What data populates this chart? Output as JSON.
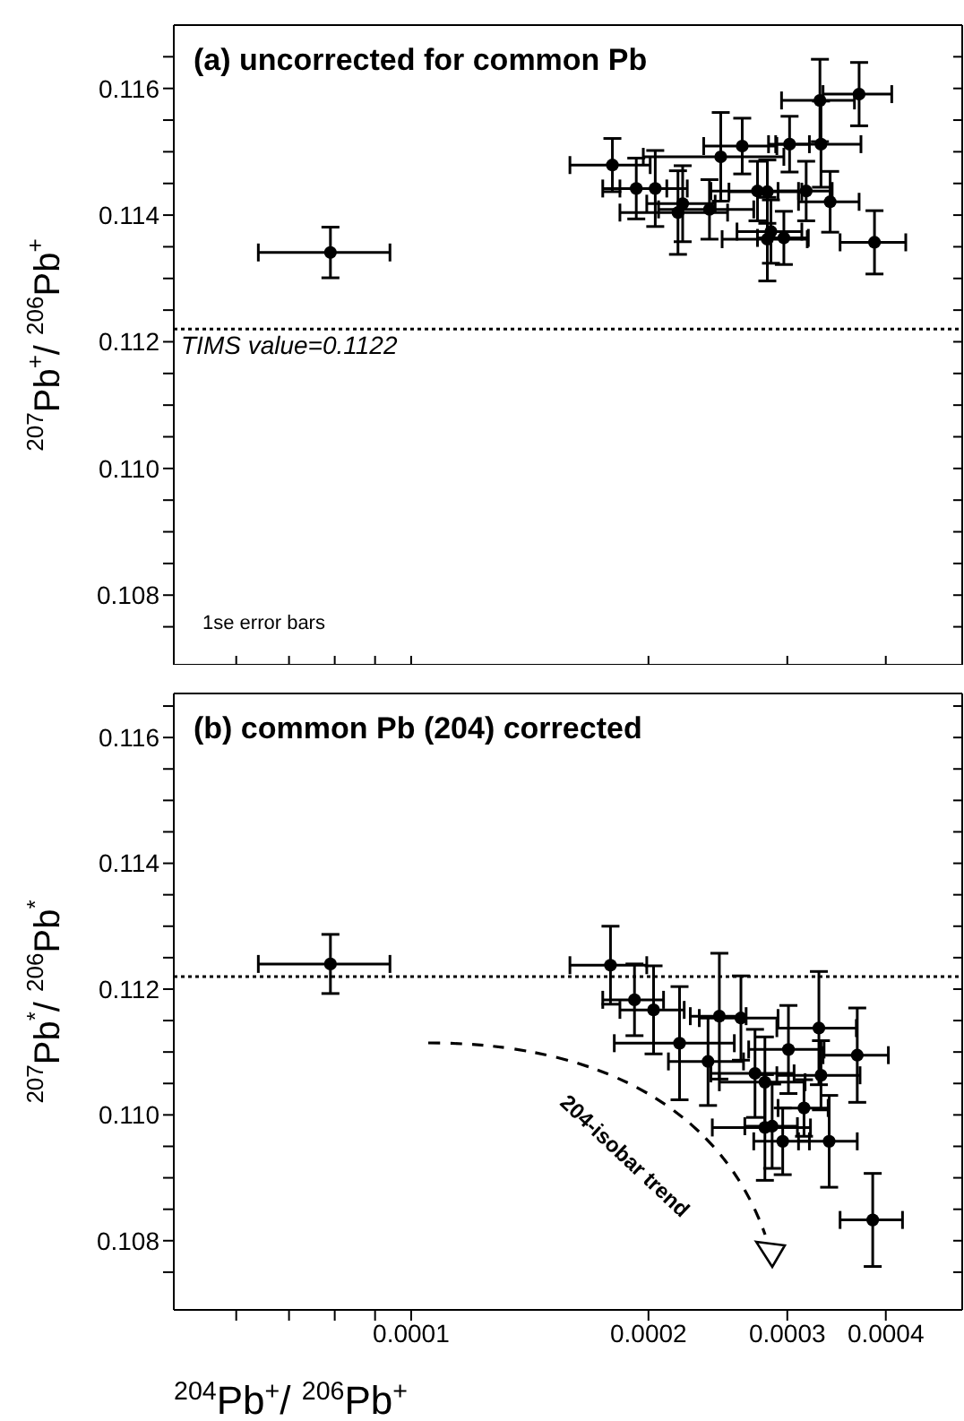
{
  "chart_data": [
    {
      "type": "scatter",
      "title": "(a) uncorrected for common Pb",
      "ylabel": "$^{207}$Pb$^{+}$/ $^{206}$Pb$^{+}$",
      "color": "#000000",
      "marker": "circle",
      "log": "x",
      "tick_labels": "y",
      "x": [
        7.9e-05,
        0.00018,
        0.000193,
        0.000204,
        0.000221,
        0.000218,
        0.000239,
        0.000247,
        0.000263,
        0.000302,
        0.00033,
        0.00037,
        0.000331,
        0.000275,
        0.000283,
        0.000317,
        0.00034,
        0.000286,
        0.000283,
        0.000297,
        0.000387
      ],
      "values": [
        0.11341,
        0.11479,
        0.11442,
        0.11442,
        0.11418,
        0.11404,
        0.11409,
        0.11492,
        0.11509,
        0.11512,
        0.11581,
        0.11591,
        0.11512,
        0.11438,
        0.11437,
        0.11438,
        0.11421,
        0.11374,
        0.11362,
        0.11364,
        0.11357
      ],
      "xerrors": [
        1.5e-05,
        2.1e-05,
        1.8e-05,
        2e-05,
        2.2e-05,
        3.4e-05,
        3.3e-05,
        5e-05,
        2.8e-05,
        1.8e-05,
        3.5e-05,
        3.7e-05,
        4.1e-05,
        3.5e-05,
        3e-05,
        2.5e-05,
        3e-05,
        2.7e-05,
        3.5e-05,
        2.2e-05,
        3.7e-05
      ],
      "errors": [
        0.0004,
        0.00042,
        0.00048,
        0.0006,
        0.0006,
        0.00066,
        0.00047,
        0.0007,
        0.00044,
        0.00044,
        0.00065,
        0.0005,
        0.00068,
        0.00047,
        0.0005,
        0.00047,
        0.00048,
        0.0005,
        0.00066,
        0.00042,
        0.0005
      ],
      "xlim": [
        5e-05,
        0.0005
      ],
      "xticks": [
        {
          "value": 6e-05,
          "label": null
        },
        {
          "value": 7e-05,
          "label": null
        },
        {
          "value": 8e-05,
          "label": null
        },
        {
          "value": 9e-05,
          "label": null
        },
        {
          "value": 0.0001,
          "label": null
        },
        {
          "value": 0.0002,
          "label": null
        },
        {
          "value": 0.0003,
          "label": null
        },
        {
          "value": 0.0004,
          "label": null
        }
      ],
      "ylim": [
        0.1069,
        0.117
      ],
      "yticks": [
        {
          "value": 0.1075,
          "label": null
        },
        {
          "value": 0.108,
          "label": "0.108"
        },
        {
          "value": 0.1085,
          "label": null
        },
        {
          "value": 0.109,
          "label": null
        },
        {
          "value": 0.1095,
          "label": null
        },
        {
          "value": 0.11,
          "label": "0.110"
        },
        {
          "value": 0.1105,
          "label": null
        },
        {
          "value": 0.111,
          "label": null
        },
        {
          "value": 0.1115,
          "label": null
        },
        {
          "value": 0.112,
          "label": "0.112"
        },
        {
          "value": 0.1125,
          "label": null
        },
        {
          "value": 0.113,
          "label": null
        },
        {
          "value": 0.1135,
          "label": null
        },
        {
          "value": 0.114,
          "label": "0.114"
        },
        {
          "value": 0.1145,
          "label": null
        },
        {
          "value": 0.115,
          "label": null
        },
        {
          "value": 0.1155,
          "label": null
        },
        {
          "value": 0.116,
          "label": "0.116"
        },
        {
          "value": 0.1165,
          "label": null
        }
      ],
      "ref_lines": [
        {
          "axis": "y",
          "value": 0.1122,
          "label": "TIMS value=0.1122",
          "line_style": "dotted",
          "color": "#000000"
        }
      ],
      "annotations": [
        "1se error bars"
      ]
    },
    {
      "type": "scatter",
      "title": "(b) common Pb (204) corrected",
      "xlabel": "$^{204}$Pb$^{+}$/ $^{206}$Pb$^{+}$",
      "ylabel": "$^{207}$Pb$^{*}$/ $^{206}$Pb$^{*}$",
      "color": "#000000",
      "marker": "circle",
      "log": "x",
      "x": [
        7.9e-05,
        0.000179,
        0.000192,
        0.000203,
        0.000219,
        0.000238,
        0.000246,
        0.000262,
        0.000301,
        0.000329,
        0.000368,
        0.000273,
        0.000281,
        0.000331,
        0.000315,
        0.000281,
        0.000287,
        0.000296,
        0.000339,
        0.000385
      ],
      "values": [
        0.1124,
        0.11238,
        0.11183,
        0.11167,
        0.11114,
        0.11085,
        0.11157,
        0.11154,
        0.11104,
        0.11138,
        0.11095,
        0.11066,
        0.11052,
        0.11063,
        0.11011,
        0.1098,
        0.10982,
        0.10958,
        0.10958,
        0.10833
      ],
      "xerrors": [
        1.5e-05,
        2e-05,
        1.7e-05,
        1.9e-05,
        3.8e-05,
        2.6e-05,
        2e-05,
        3e-05,
        3.3e-05,
        3.8e-05,
        3.5e-05,
        3.3e-05,
        3.5e-05,
        4e-05,
        2.3e-05,
        4e-05,
        2.2e-05,
        2.4e-05,
        2.9e-05,
        3.5e-05
      ],
      "errors": [
        0.00047,
        0.00062,
        0.00057,
        0.0007,
        0.0009,
        0.0007,
        0.001,
        0.00067,
        0.0007,
        0.0009,
        0.00075,
        0.0007,
        0.00072,
        0.00055,
        0.00045,
        0.00084,
        0.00067,
        0.00053,
        0.00073,
        0.00074
      ],
      "xlim": [
        5e-05,
        0.0005
      ],
      "xticks": [
        {
          "value": 6e-05,
          "label": null
        },
        {
          "value": 7e-05,
          "label": null
        },
        {
          "value": 8e-05,
          "label": null
        },
        {
          "value": 9e-05,
          "label": null
        },
        {
          "value": 0.0001,
          "label": "0.0001"
        },
        {
          "value": 0.0002,
          "label": "0.0002"
        },
        {
          "value": 0.0003,
          "label": "0.0003"
        },
        {
          "value": 0.0004,
          "label": "0.0004"
        }
      ],
      "ylim": [
        0.1069,
        0.1167
      ],
      "yticks": [
        {
          "value": 0.1075,
          "label": null
        },
        {
          "value": 0.108,
          "label": "0.108"
        },
        {
          "value": 0.1085,
          "label": null
        },
        {
          "value": 0.109,
          "label": null
        },
        {
          "value": 0.1095,
          "label": null
        },
        {
          "value": 0.11,
          "label": "0.110"
        },
        {
          "value": 0.1105,
          "label": null
        },
        {
          "value": 0.111,
          "label": null
        },
        {
          "value": 0.1115,
          "label": null
        },
        {
          "value": 0.112,
          "label": "0.112"
        },
        {
          "value": 0.1125,
          "label": null
        },
        {
          "value": 0.113,
          "label": null
        },
        {
          "value": 0.1135,
          "label": null
        },
        {
          "value": 0.114,
          "label": "0.114"
        },
        {
          "value": 0.1145,
          "label": null
        },
        {
          "value": 0.115,
          "label": null
        },
        {
          "value": 0.1155,
          "label": null
        },
        {
          "value": 0.116,
          "label": "0.116"
        },
        {
          "value": 0.1165,
          "label": null
        }
      ],
      "ref_lines": [
        {
          "axis": "y",
          "value": 0.1122,
          "line_style": "dotted",
          "color": "#000000"
        }
      ],
      "annotations": [
        "204-isobar trend"
      ]
    }
  ]
}
